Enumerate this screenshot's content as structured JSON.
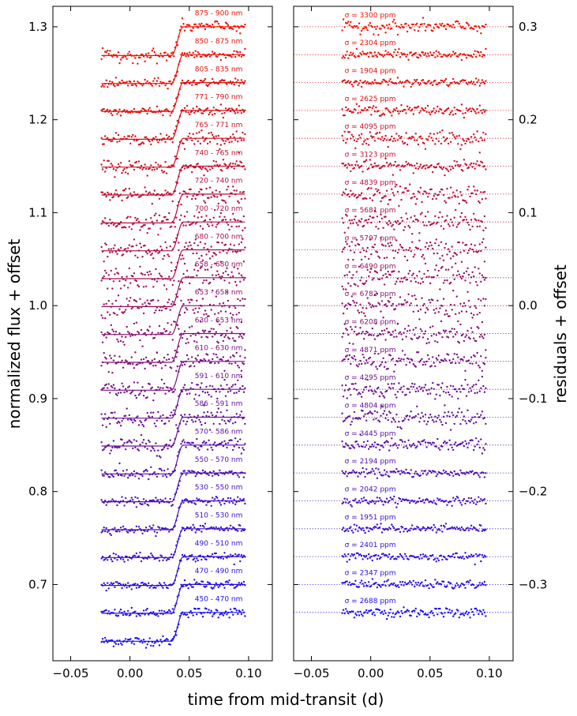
{
  "chart_data": [
    {
      "type": "scatter",
      "panel": "left",
      "xlabel": "time from mid-transit (d)",
      "ylabel": "normalized flux + offset",
      "xlim": [
        -0.065,
        0.12
      ],
      "ylim": [
        0.618,
        1.322
      ],
      "xticks": [
        -0.05,
        0.0,
        0.05,
        0.1
      ],
      "xtick_labels": [
        "−0.05",
        "0.00",
        "0.05",
        "0.10"
      ],
      "yticks": [
        0.7,
        0.8,
        0.9,
        1.0,
        1.1,
        1.2,
        1.3
      ],
      "ytick_labels": [
        "0.7",
        "0.8",
        "0.9",
        "1.0",
        "1.1",
        "1.2",
        "1.3"
      ],
      "time_range": [
        -0.024,
        0.097
      ],
      "egress_start": 0.035,
      "egress_end": 0.045,
      "egress_depth": 0.031,
      "series": [
        {
          "name": "450 - 470 nm",
          "baseline": 0.67,
          "color": "#1a10f0",
          "label_x": -0.024
        },
        {
          "name": "470 - 490 nm",
          "baseline": 0.7,
          "color": "#2410e4",
          "label_x": -0.024
        },
        {
          "name": "490 - 510 nm",
          "baseline": 0.73,
          "color": "#2f10d8",
          "label_x": -0.024
        },
        {
          "name": "510 - 530 nm",
          "baseline": 0.76,
          "color": "#3910cc",
          "label_x": -0.024
        },
        {
          "name": "530 - 550 nm",
          "baseline": 0.79,
          "color": "#4410c0",
          "label_x": -0.024
        },
        {
          "name": "550 - 570 nm",
          "baseline": 0.82,
          "color": "#4e10b4",
          "label_x": -0.024
        },
        {
          "name": "570 - 586 nm",
          "baseline": 0.85,
          "color": "#5910a8",
          "label_x": -0.024
        },
        {
          "name": "586 - 591 nm",
          "baseline": 0.88,
          "color": "#63109c",
          "label_x": -0.024
        },
        {
          "name": "591 - 610 nm",
          "baseline": 0.91,
          "color": "#6e1090",
          "label_x": -0.024
        },
        {
          "name": "610 - 630 nm",
          "baseline": 0.94,
          "color": "#781084",
          "label_x": -0.024
        },
        {
          "name": "630 - 653 nm",
          "baseline": 0.97,
          "color": "#831078",
          "label_x": -0.024
        },
        {
          "name": "653 - 658 nm",
          "baseline": 1.0,
          "color": "#8d106c",
          "label_x": -0.024
        },
        {
          "name": "658 - 680 nm",
          "baseline": 1.03,
          "color": "#981060",
          "label_x": -0.024
        },
        {
          "name": "680 - 700 nm",
          "baseline": 1.06,
          "color": "#a21054",
          "label_x": -0.024
        },
        {
          "name": "700 - 720 nm",
          "baseline": 1.09,
          "color": "#ad1048",
          "label_x": -0.024
        },
        {
          "name": "720 - 740 nm",
          "baseline": 1.12,
          "color": "#b7103c",
          "label_x": -0.024
        },
        {
          "name": "740 - 765 nm",
          "baseline": 1.15,
          "color": "#c21030",
          "label_x": -0.024
        },
        {
          "name": "765 - 771 nm",
          "baseline": 1.18,
          "color": "#cc1024",
          "label_x": -0.024
        },
        {
          "name": "771 - 790 nm",
          "baseline": 1.21,
          "color": "#d71018",
          "label_x": -0.024
        },
        {
          "name": "805 - 835 nm",
          "baseline": 1.24,
          "color": "#e1100c",
          "label_x": -0.024
        },
        {
          "name": "850 - 875 nm",
          "baseline": 1.27,
          "color": "#ec1006",
          "label_x": -0.024
        },
        {
          "name": "875 - 900 nm",
          "baseline": 1.3,
          "color": "#f61000",
          "label_x": -0.024
        }
      ]
    },
    {
      "type": "scatter",
      "panel": "right",
      "xlabel": "time from mid-transit (d)",
      "ylabel": "residuals + offset",
      "xlim": [
        -0.065,
        0.12
      ],
      "ylim": [
        -0.382,
        0.322
      ],
      "xticks": [
        -0.05,
        0.0,
        0.05,
        0.1
      ],
      "xtick_labels": [
        "−0.05",
        "0.00",
        "0.05",
        "0.10"
      ],
      "yticks": [
        -0.3,
        -0.2,
        -0.1,
        0.0,
        0.1,
        0.2,
        0.3
      ],
      "ytick_labels": [
        "−0.3",
        "−0.2",
        "−0.1",
        "0.0",
        "0.1",
        "0.2",
        "0.3"
      ],
      "series": [
        {
          "name": "450 - 470 nm",
          "offset": -0.33,
          "sigma_ppm": 2688,
          "label": "σ = 2688 ppm"
        },
        {
          "name": "470 - 490 nm",
          "offset": -0.3,
          "sigma_ppm": 2347,
          "label": "σ = 2347 ppm"
        },
        {
          "name": "490 - 510 nm",
          "offset": -0.27,
          "sigma_ppm": 2401,
          "label": "σ = 2401 ppm"
        },
        {
          "name": "510 - 530 nm",
          "offset": -0.24,
          "sigma_ppm": 1951,
          "label": "σ = 1951 ppm"
        },
        {
          "name": "530 - 550 nm",
          "offset": -0.21,
          "sigma_ppm": 2042,
          "label": "σ = 2042 ppm"
        },
        {
          "name": "550 - 570 nm",
          "offset": -0.18,
          "sigma_ppm": 2194,
          "label": "σ = 2194 ppm"
        },
        {
          "name": "570 - 586 nm",
          "offset": -0.15,
          "sigma_ppm": 3445,
          "label": "σ = 3445 ppm"
        },
        {
          "name": "586 - 591 nm",
          "offset": -0.12,
          "sigma_ppm": 4804,
          "label": "σ = 4804 ppm"
        },
        {
          "name": "591 - 610 nm",
          "offset": -0.09,
          "sigma_ppm": 4295,
          "label": "σ = 4295 ppm"
        },
        {
          "name": "610 - 630 nm",
          "offset": -0.06,
          "sigma_ppm": 4871,
          "label": "σ = 4871 ppm"
        },
        {
          "name": "630 - 653 nm",
          "offset": -0.03,
          "sigma_ppm": 6208,
          "label": "σ = 6208 ppm"
        },
        {
          "name": "653 - 658 nm",
          "offset": 0.0,
          "sigma_ppm": 6782,
          "label": "σ = 6782 ppm"
        },
        {
          "name": "658 - 680 nm",
          "offset": 0.03,
          "sigma_ppm": 6490,
          "label": "σ = 6490 ppm"
        },
        {
          "name": "680 - 700 nm",
          "offset": 0.06,
          "sigma_ppm": 5797,
          "label": "σ = 5797 ppm"
        },
        {
          "name": "700 - 720 nm",
          "offset": 0.09,
          "sigma_ppm": 5681,
          "label": "σ = 5681 ppm"
        },
        {
          "name": "720 - 740 nm",
          "offset": 0.12,
          "sigma_ppm": 4839,
          "label": "σ = 4839 ppm"
        },
        {
          "name": "740 - 765 nm",
          "offset": 0.15,
          "sigma_ppm": 3123,
          "label": "σ = 3123 ppm"
        },
        {
          "name": "765 - 771 nm",
          "offset": 0.18,
          "sigma_ppm": 4095,
          "label": "σ = 4095 ppm"
        },
        {
          "name": "771 - 790 nm",
          "offset": 0.21,
          "sigma_ppm": 2625,
          "label": "σ = 2625 ppm"
        },
        {
          "name": "805 - 835 nm",
          "offset": 0.24,
          "sigma_ppm": 1904,
          "label": "σ = 1904 ppm"
        },
        {
          "name": "850 - 875 nm",
          "offset": 0.27,
          "sigma_ppm": 2304,
          "label": "σ = 2304 ppm"
        },
        {
          "name": "875 - 900 nm",
          "offset": 0.3,
          "sigma_ppm": 3300,
          "label": "σ = 3300 ppm"
        }
      ]
    }
  ],
  "figure": {
    "xlabel": "time from mid-transit (d)",
    "left_ylabel": "normalized flux + offset",
    "right_ylabel": "residuals + offset"
  }
}
